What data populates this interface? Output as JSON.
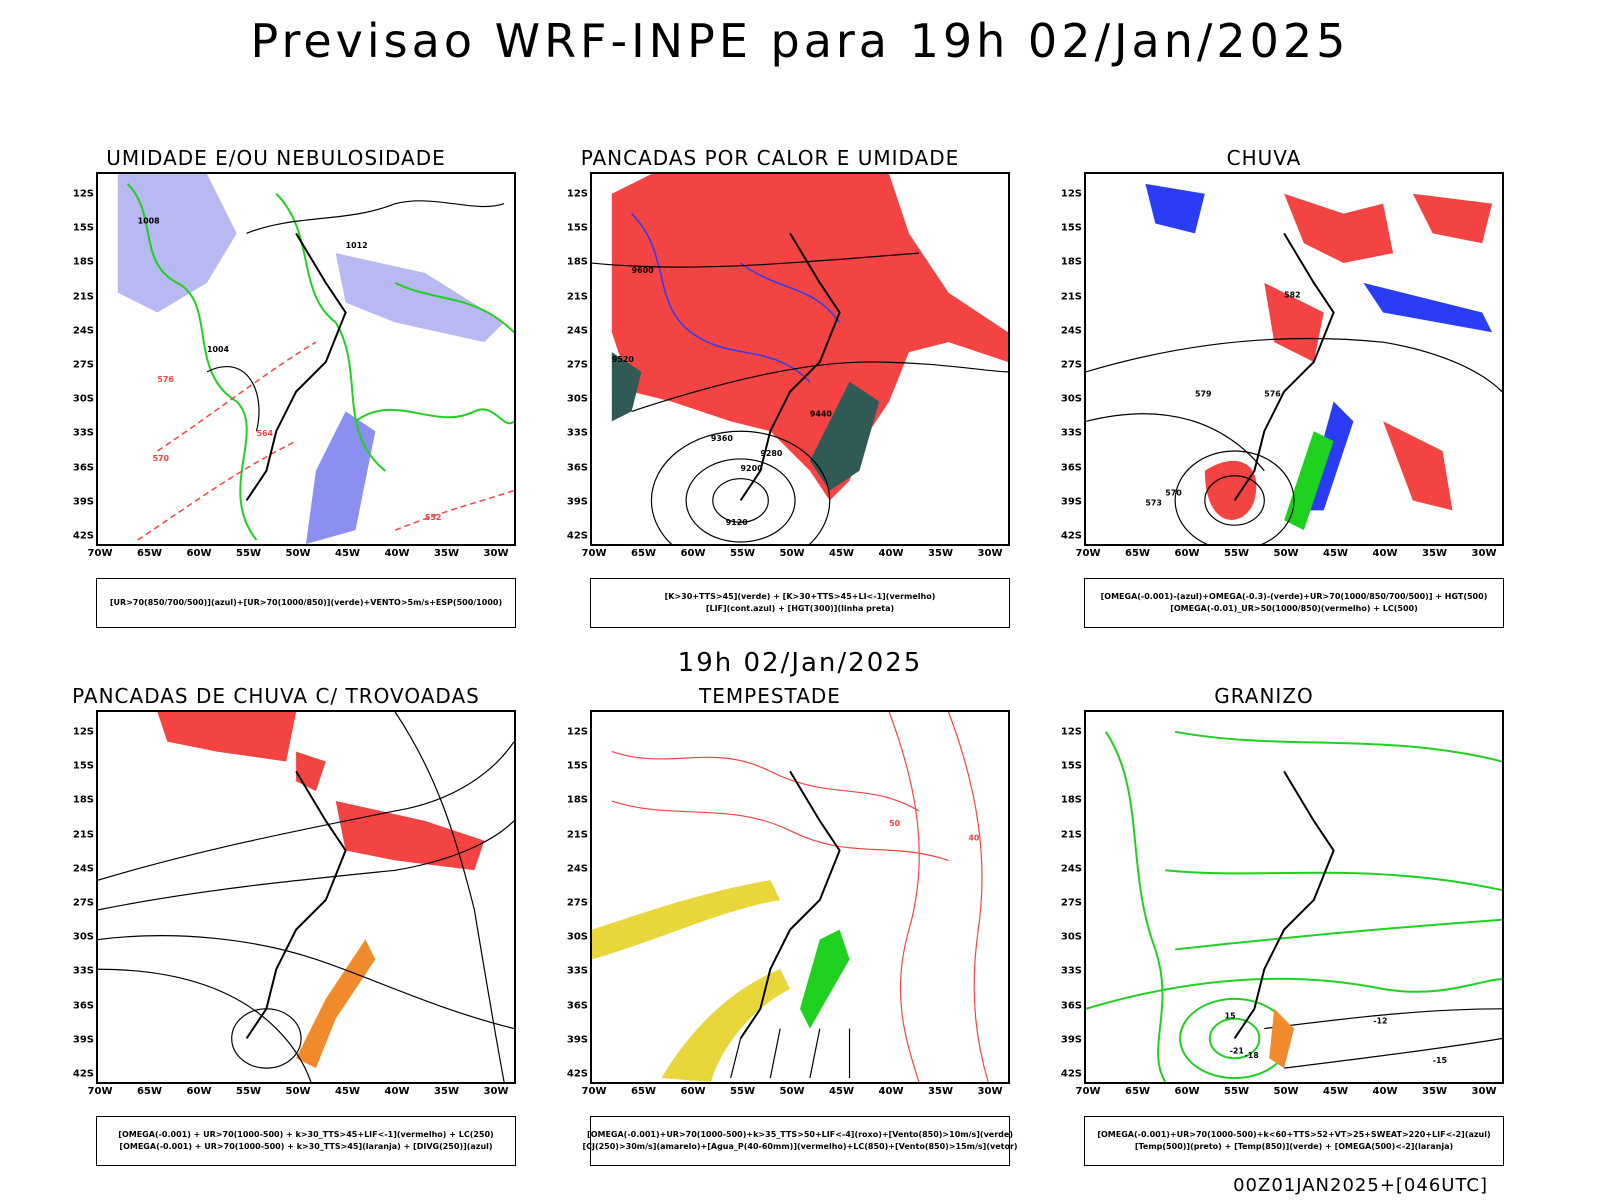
{
  "header": {
    "title": "Previsao WRF-INPE  para 19h 02/Jan/2025"
  },
  "middle": {
    "title": "19h 02/Jan/2025"
  },
  "footer": {
    "run": "00Z01JAN2025+[046UTC]"
  },
  "axes": {
    "lat_ticks": [
      "12S",
      "15S",
      "18S",
      "21S",
      "24S",
      "27S",
      "30S",
      "33S",
      "36S",
      "39S",
      "42S"
    ],
    "lon_ticks": [
      "70W",
      "65W",
      "60W",
      "55W",
      "50W",
      "45W",
      "40W",
      "35W",
      "30W"
    ]
  },
  "colors": {
    "red": "#f44343",
    "green": "#1fd11f",
    "blue": "#2b3cf5",
    "lavender": "#b8b8f2",
    "orange": "#f08a2a",
    "yellow": "#e8d63a",
    "darkteal": "#2f5a55",
    "purple": "#b42be0"
  },
  "panels": [
    {
      "title": "UMIDADE E/OU NEBULOSIDADE",
      "legend": [
        "[UR>70(850/700/500)](azul)+[UR>70(1000/850)](verde)+VENTO>5m/s+ESP(500/1000)"
      ],
      "contour_labels": [
        "1008",
        "1012",
        "1004",
        "576",
        "564",
        "552",
        "570"
      ]
    },
    {
      "title": "PANCADAS POR CALOR E UMIDADE",
      "legend": [
        "[K>30+TTS>45](verde) + [K>30+TTS>45+LI<-1](vermelho)",
        "[LIF](cont.azul) + [HGT(300)](linha preta)"
      ],
      "contour_labels": [
        "9600",
        "9520",
        "9440",
        "9360",
        "9280",
        "9200",
        "9120"
      ]
    },
    {
      "title": "CHUVA",
      "legend": [
        "[OMEGA(-0.001)-(azul)+OMEGA(-0.3)-(verde)+UR>70(1000/850/700/500)] + HGT(500)",
        "[OMEGA(-0.01)_UR>50(1000/850)(vermelho) + LC(500)"
      ],
      "contour_labels": [
        "582",
        "579",
        "576",
        "573",
        "570"
      ]
    },
    {
      "title": "PANCADAS DE CHUVA C/ TROVOADAS",
      "legend": [
        "[OMEGA(-0.001) + UR>70(1000-500) + k>30_TTS>45+LIF<-1](vermelho) + LC(250)",
        "[OMEGA(-0.001) + UR>70(1000-500) + k>30_TTS>45](laranja) + [DIVG(250)](azul)"
      ],
      "contour_labels": []
    },
    {
      "title": "TEMPESTADE",
      "legend": [
        "[OMEGA(-0.001)+UR>70(1000-500)+k>35_TTS>50+LIF<-4](roxo)+[Vento(850)>10m/s](verde)",
        "[CJ(250)>30m/s](amarelo)+[Agua_P(40-60mm)](vermelho)+LC(850)+[Vento(850)>15m/s](vetor)"
      ],
      "contour_labels": [
        "50",
        "40"
      ]
    },
    {
      "title": "GRANIZO",
      "legend": [
        "[OMEGA(-0.001)+UR>70(1000-500)+k<60+TTS>52+VT>25+SWEAT>220+LIF<-2](azul)",
        "[Temp(500)](preto) + [Temp(850)](verde) + [OMEGA(500)<-2](laranja)"
      ],
      "contour_labels": [
        "-12",
        "-15",
        "-18",
        "-21",
        "15"
      ]
    }
  ]
}
